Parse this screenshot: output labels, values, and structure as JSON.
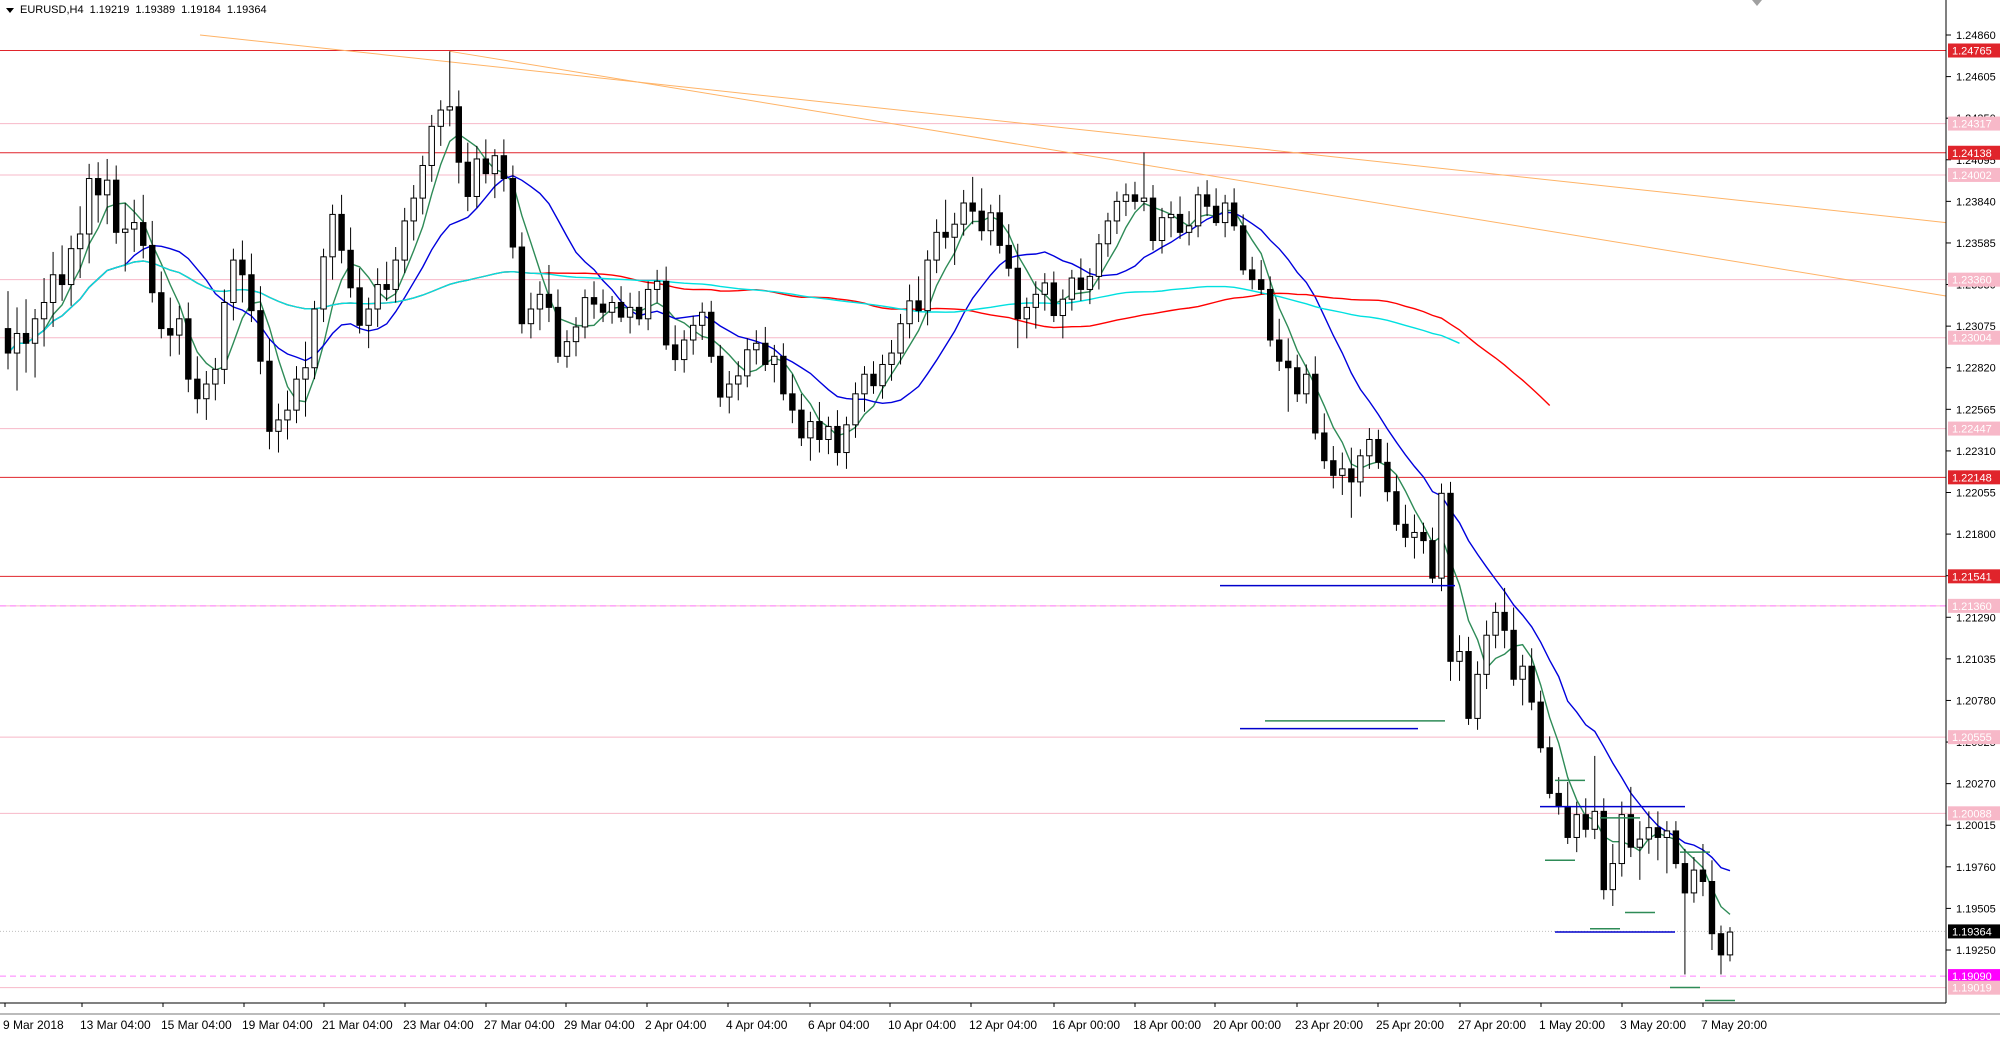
{
  "header": {
    "symbol": "EURUSD,H4",
    "open": "1.19219",
    "high": "1.19389",
    "low": "1.19184",
    "close": "1.19364"
  },
  "chart_data": {
    "type": "candlestick",
    "symbol": "EURUSD",
    "timeframe": "H4",
    "ylim": [
      1.1895,
      1.2498
    ],
    "price_ticks": [
      "1.24860",
      "1.24605",
      "1.24350",
      "1.24095",
      "1.23840",
      "1.23585",
      "1.23330",
      "1.23075",
      "1.22820",
      "1.22565",
      "1.22310",
      "1.22055",
      "1.21800",
      "1.21545",
      "1.21290",
      "1.21035",
      "1.20780",
      "1.20525",
      "1.20270",
      "1.20015",
      "1.19760",
      "1.19505",
      "1.19250"
    ],
    "time_labels": [
      "9 Mar 2018",
      "13 Mar 04:00",
      "15 Mar 04:00",
      "19 Mar 04:00",
      "21 Mar 04:00",
      "23 Mar 04:00",
      "27 Mar 04:00",
      "29 Mar 04:00",
      "2 Apr 04:00",
      "4 Apr 04:00",
      "6 Apr 04:00",
      "10 Apr 04:00",
      "12 Apr 04:00",
      "16 Apr 00:00",
      "18 Apr 00:00",
      "20 Apr 00:00",
      "23 Apr 20:00",
      "25 Apr 20:00",
      "27 Apr 20:00",
      "1 May 20:00",
      "3 May 20:00",
      "7 May 20:00"
    ],
    "candles": [
      [
        1.2306,
        1.2329,
        1.2281,
        1.2291
      ],
      [
        1.2291,
        1.2319,
        1.2268,
        1.2303
      ],
      [
        1.2303,
        1.2324,
        1.2279,
        1.2297
      ],
      [
        1.2297,
        1.2318,
        1.2276,
        1.2312
      ],
      [
        1.2312,
        1.2337,
        1.2295,
        1.2322
      ],
      [
        1.2322,
        1.2353,
        1.2307,
        1.2339
      ],
      [
        1.2339,
        1.2357,
        1.2323,
        1.2333
      ],
      [
        1.2333,
        1.2363,
        1.232,
        1.2355
      ],
      [
        1.2355,
        1.2381,
        1.2337,
        1.2364
      ],
      [
        1.2364,
        1.2407,
        1.2346,
        1.2398
      ],
      [
        1.2398,
        1.2408,
        1.2371,
        1.2388
      ],
      [
        1.2388,
        1.241,
        1.237,
        1.2397
      ],
      [
        1.2397,
        1.2406,
        1.2358,
        1.2365
      ],
      [
        1.2365,
        1.2383,
        1.2341,
        1.2367
      ],
      [
        1.2367,
        1.2385,
        1.2353,
        1.2371
      ],
      [
        1.2371,
        1.2388,
        1.2349,
        1.2357
      ],
      [
        1.2357,
        1.2372,
        1.2322,
        1.2328
      ],
      [
        1.2328,
        1.2341,
        1.23,
        1.2306
      ],
      [
        1.2306,
        1.2325,
        1.2289,
        1.2302
      ],
      [
        1.2302,
        1.232,
        1.229,
        1.2312
      ],
      [
        1.2312,
        1.2322,
        1.2267,
        1.2275
      ],
      [
        1.2275,
        1.2289,
        1.2254,
        1.2263
      ],
      [
        1.2263,
        1.228,
        1.225,
        1.2272
      ],
      [
        1.2272,
        1.2288,
        1.2262,
        1.2281
      ],
      [
        1.2281,
        1.233,
        1.2272,
        1.2322
      ],
      [
        1.2322,
        1.2355,
        1.2311,
        1.2348
      ],
      [
        1.2348,
        1.236,
        1.2322,
        1.2339
      ],
      [
        1.2339,
        1.2352,
        1.231,
        1.2317
      ],
      [
        1.2317,
        1.2332,
        1.2278,
        1.2286
      ],
      [
        1.2286,
        1.23,
        1.2232,
        1.2243
      ],
      [
        1.2243,
        1.226,
        1.223,
        1.225
      ],
      [
        1.225,
        1.2268,
        1.2238,
        1.2256
      ],
      [
        1.2256,
        1.2283,
        1.2248,
        1.2275
      ],
      [
        1.2275,
        1.2298,
        1.2252,
        1.2282
      ],
      [
        1.2282,
        1.2323,
        1.2275,
        1.2318
      ],
      [
        1.2318,
        1.2355,
        1.231,
        1.235
      ],
      [
        1.235,
        1.2382,
        1.2336,
        1.2376
      ],
      [
        1.2376,
        1.2388,
        1.2346,
        1.2354
      ],
      [
        1.2354,
        1.2368,
        1.2325,
        1.2331
      ],
      [
        1.2331,
        1.2343,
        1.2303,
        1.2308
      ],
      [
        1.2308,
        1.2325,
        1.2294,
        1.2318
      ],
      [
        1.2318,
        1.2343,
        1.2307,
        1.2333
      ],
      [
        1.2333,
        1.2347,
        1.2323,
        1.233
      ],
      [
        1.233,
        1.2356,
        1.2322,
        1.2348
      ],
      [
        1.2348,
        1.238,
        1.234,
        1.2372
      ],
      [
        1.2372,
        1.2394,
        1.236,
        1.2386
      ],
      [
        1.2386,
        1.2412,
        1.2376,
        1.2406
      ],
      [
        1.2406,
        1.2437,
        1.2396,
        1.243
      ],
      [
        1.243,
        1.2446,
        1.2418,
        1.244
      ],
      [
        1.244,
        1.2476,
        1.243,
        1.2442
      ],
      [
        1.2442,
        1.2452,
        1.2395,
        1.2408
      ],
      [
        1.2408,
        1.242,
        1.2378,
        1.2387
      ],
      [
        1.2387,
        1.2418,
        1.238,
        1.241
      ],
      [
        1.241,
        1.2422,
        1.2395,
        1.2401
      ],
      [
        1.2401,
        1.2416,
        1.2386,
        1.2412
      ],
      [
        1.2412,
        1.2422,
        1.239,
        1.2398
      ],
      [
        1.2398,
        1.2406,
        1.2349,
        1.2356
      ],
      [
        1.2356,
        1.2365,
        1.2303,
        1.2309
      ],
      [
        1.2309,
        1.2328,
        1.23,
        1.2318
      ],
      [
        1.2318,
        1.2335,
        1.2305,
        1.2327
      ],
      [
        1.2327,
        1.2345,
        1.231,
        1.2319
      ],
      [
        1.2319,
        1.233,
        1.2285,
        1.2289
      ],
      [
        1.2289,
        1.2305,
        1.2282,
        1.2298
      ],
      [
        1.2298,
        1.2313,
        1.2289,
        1.2307
      ],
      [
        1.2307,
        1.233,
        1.23,
        1.2325
      ],
      [
        1.2325,
        1.2335,
        1.2312,
        1.2321
      ],
      [
        1.2321,
        1.233,
        1.231,
        1.2316
      ],
      [
        1.2316,
        1.2326,
        1.2309,
        1.2322
      ],
      [
        1.2322,
        1.2332,
        1.231,
        1.2313
      ],
      [
        1.2313,
        1.2328,
        1.2303,
        1.2319
      ],
      [
        1.2319,
        1.2329,
        1.2308,
        1.2312
      ],
      [
        1.2312,
        1.2335,
        1.2305,
        1.233
      ],
      [
        1.233,
        1.2342,
        1.2322,
        1.2335
      ],
      [
        1.2335,
        1.2344,
        1.2293,
        1.2296
      ],
      [
        1.2296,
        1.2308,
        1.228,
        1.2287
      ],
      [
        1.2287,
        1.2305,
        1.2279,
        1.2299
      ],
      [
        1.2299,
        1.2314,
        1.229,
        1.2308
      ],
      [
        1.2308,
        1.2322,
        1.2299,
        1.2316
      ],
      [
        1.2316,
        1.2323,
        1.2285,
        1.2289
      ],
      [
        1.2289,
        1.2296,
        1.2258,
        1.2264
      ],
      [
        1.2264,
        1.228,
        1.2254,
        1.2272
      ],
      [
        1.2272,
        1.2286,
        1.2262,
        1.2277
      ],
      [
        1.2277,
        1.23,
        1.227,
        1.2293
      ],
      [
        1.2293,
        1.2305,
        1.2284,
        1.2297
      ],
      [
        1.2297,
        1.2307,
        1.228,
        1.2284
      ],
      [
        1.2284,
        1.2296,
        1.2273,
        1.2289
      ],
      [
        1.2289,
        1.2297,
        1.2262,
        1.2266
      ],
      [
        1.2266,
        1.2278,
        1.2248,
        1.2256
      ],
      [
        1.2256,
        1.2266,
        1.2234,
        1.2239
      ],
      [
        1.2239,
        1.2255,
        1.2225,
        1.2249
      ],
      [
        1.2249,
        1.2261,
        1.223,
        1.2238
      ],
      [
        1.2238,
        1.2252,
        1.2229,
        1.2246
      ],
      [
        1.2246,
        1.2256,
        1.2222,
        1.223
      ],
      [
        1.223,
        1.2252,
        1.222,
        1.2247
      ],
      [
        1.2247,
        1.2273,
        1.2239,
        1.2266
      ],
      [
        1.2266,
        1.2283,
        1.2255,
        1.2278
      ],
      [
        1.2278,
        1.2286,
        1.2266,
        1.2271
      ],
      [
        1.2271,
        1.229,
        1.2263,
        1.2284
      ],
      [
        1.2284,
        1.2299,
        1.2274,
        1.2291
      ],
      [
        1.2291,
        1.2315,
        1.2284,
        1.2309
      ],
      [
        1.2309,
        1.2333,
        1.23,
        1.2323
      ],
      [
        1.2323,
        1.2338,
        1.231,
        1.2317
      ],
      [
        1.2317,
        1.2354,
        1.2308,
        1.2348
      ],
      [
        1.2348,
        1.2373,
        1.234,
        1.2365
      ],
      [
        1.2365,
        1.2385,
        1.2355,
        1.2362
      ],
      [
        1.2362,
        1.2377,
        1.2345,
        1.237
      ],
      [
        1.237,
        1.2391,
        1.2363,
        1.2383
      ],
      [
        1.2383,
        1.2399,
        1.237,
        1.2378
      ],
      [
        1.2378,
        1.2392,
        1.236,
        1.2366
      ],
      [
        1.2366,
        1.2382,
        1.2357,
        1.2377
      ],
      [
        1.2377,
        1.2388,
        1.2352,
        1.2357
      ],
      [
        1.2357,
        1.237,
        1.2338,
        1.2343
      ],
      [
        1.2343,
        1.2358,
        1.2294,
        1.2312
      ],
      [
        1.2312,
        1.2325,
        1.23,
        1.2319
      ],
      [
        1.2319,
        1.2335,
        1.2306,
        1.2327
      ],
      [
        1.2327,
        1.234,
        1.2317,
        1.2334
      ],
      [
        1.2334,
        1.2341,
        1.231,
        1.2314
      ],
      [
        1.2314,
        1.233,
        1.23,
        1.2324
      ],
      [
        1.2324,
        1.2342,
        1.2317,
        1.2337
      ],
      [
        1.2337,
        1.2349,
        1.2323,
        1.233
      ],
      [
        1.233,
        1.2343,
        1.2321,
        1.2338
      ],
      [
        1.2338,
        1.2364,
        1.233,
        1.2358
      ],
      [
        1.2358,
        1.2377,
        1.235,
        1.2372
      ],
      [
        1.2372,
        1.239,
        1.2364,
        1.2384
      ],
      [
        1.2384,
        1.2395,
        1.2375,
        1.2388
      ],
      [
        1.2388,
        1.2396,
        1.2379,
        1.2384
      ],
      [
        1.2384,
        1.2414,
        1.2378,
        1.2386
      ],
      [
        1.2386,
        1.2394,
        1.2354,
        1.236
      ],
      [
        1.236,
        1.238,
        1.2352,
        1.2374
      ],
      [
        1.2374,
        1.2384,
        1.2362,
        1.2376
      ],
      [
        1.2376,
        1.2387,
        1.2361,
        1.2365
      ],
      [
        1.2365,
        1.2378,
        1.2357,
        1.2369
      ],
      [
        1.2369,
        1.2393,
        1.2362,
        1.2388
      ],
      [
        1.2388,
        1.2397,
        1.2375,
        1.2381
      ],
      [
        1.2381,
        1.2392,
        1.2369,
        1.2371
      ],
      [
        1.2371,
        1.2388,
        1.2362,
        1.2383
      ],
      [
        1.2383,
        1.2392,
        1.2366,
        1.2369
      ],
      [
        1.2369,
        1.2376,
        1.2339,
        1.2342
      ],
      [
        1.2342,
        1.235,
        1.233,
        1.2336
      ],
      [
        1.2336,
        1.2348,
        1.2327,
        1.233
      ],
      [
        1.233,
        1.2338,
        1.2295,
        1.2299
      ],
      [
        1.2299,
        1.2312,
        1.228,
        1.2286
      ],
      [
        1.2286,
        1.23,
        1.2255,
        1.2282
      ],
      [
        1.2282,
        1.229,
        1.2261,
        1.2266
      ],
      [
        1.2266,
        1.2284,
        1.226,
        1.2278
      ],
      [
        1.2278,
        1.2289,
        1.2238,
        1.2242
      ],
      [
        1.2242,
        1.2254,
        1.222,
        1.2225
      ],
      [
        1.2225,
        1.2234,
        1.2208,
        1.2216
      ],
      [
        1.2216,
        1.223,
        1.2204,
        1.222
      ],
      [
        1.222,
        1.2233,
        1.219,
        1.2212
      ],
      [
        1.2212,
        1.2232,
        1.2203,
        1.2228
      ],
      [
        1.2228,
        1.2245,
        1.222,
        1.2238
      ],
      [
        1.2238,
        1.2244,
        1.222,
        1.2224
      ],
      [
        1.2224,
        1.2236,
        1.22,
        1.2206
      ],
      [
        1.2206,
        1.2216,
        1.2182,
        1.2186
      ],
      [
        1.2186,
        1.2198,
        1.2172,
        1.2178
      ],
      [
        1.2178,
        1.2192,
        1.2165,
        1.2181
      ],
      [
        1.2181,
        1.2187,
        1.2168,
        1.2176
      ],
      [
        1.2176,
        1.2184,
        1.215,
        1.2153
      ],
      [
        1.2153,
        1.2211,
        1.2145,
        1.2205
      ],
      [
        1.2205,
        1.2212,
        1.209,
        1.2102
      ],
      [
        1.2102,
        1.2118,
        1.209,
        1.2108
      ],
      [
        1.2108,
        1.2117,
        1.2063,
        1.2067
      ],
      [
        1.2067,
        1.2102,
        1.206,
        1.2094
      ],
      [
        1.2094,
        1.2127,
        1.2085,
        1.2118
      ],
      [
        1.2118,
        1.2138,
        1.211,
        1.2132
      ],
      [
        1.2132,
        1.2147,
        1.211,
        1.2121
      ],
      [
        1.2121,
        1.2135,
        1.2087,
        1.2091
      ],
      [
        1.2091,
        1.2106,
        1.2075,
        1.2099
      ],
      [
        1.2099,
        1.211,
        1.2072,
        1.2077
      ],
      [
        1.2077,
        1.2084,
        1.2046,
        1.2049
      ],
      [
        1.2049,
        1.2056,
        1.2018,
        1.2021
      ],
      [
        1.2021,
        1.2031,
        1.2008,
        1.2013
      ],
      [
        1.2013,
        1.2028,
        1.199,
        1.1994
      ],
      [
        1.1994,
        1.2016,
        1.1985,
        1.2008
      ],
      [
        1.2008,
        1.2018,
        1.1994,
        1.1999
      ],
      [
        1.1999,
        1.2044,
        1.1993,
        1.201
      ],
      [
        1.201,
        1.2018,
        1.1956,
        1.1962
      ],
      [
        1.1962,
        1.199,
        1.1952,
        1.1978
      ],
      [
        1.1978,
        1.2016,
        1.197,
        1.2008
      ],
      [
        1.2008,
        1.2025,
        1.1982,
        1.1988
      ],
      [
        1.1988,
        1.2004,
        1.1968,
        1.1993
      ],
      [
        1.1993,
        1.201,
        1.1984,
        1.2
      ],
      [
        1.2,
        1.201,
        1.198,
        1.1994
      ],
      [
        1.1994,
        1.2004,
        1.1972,
        1.1998
      ],
      [
        1.1998,
        1.2004,
        1.1975,
        1.1978
      ],
      [
        1.1978,
        1.1987,
        1.191,
        1.196
      ],
      [
        1.196,
        1.1982,
        1.1954,
        1.1974
      ],
      [
        1.1974,
        1.199,
        1.1958,
        1.1967
      ],
      [
        1.1967,
        1.198,
        1.1925,
        1.1935
      ],
      [
        1.1935,
        1.194,
        1.191,
        1.1922
      ],
      [
        1.1922,
        1.1939,
        1.1918,
        1.1936
      ]
    ],
    "moving_averages": [
      {
        "color": "#2e8b57"
      },
      {
        "color": "#0000dd"
      },
      {
        "color": "#ff0000"
      },
      {
        "color": "#00e0e0"
      }
    ],
    "price_levels": [
      {
        "price": "1.24765",
        "kind": "red"
      },
      {
        "price": "1.24317",
        "kind": "pink"
      },
      {
        "price": "1.24138",
        "kind": "red"
      },
      {
        "price": "1.24002",
        "kind": "pink"
      },
      {
        "price": "1.23360",
        "kind": "pink"
      },
      {
        "price": "1.23004",
        "kind": "pink"
      },
      {
        "price": "1.22447",
        "kind": "pink"
      },
      {
        "price": "1.22148",
        "kind": "red"
      },
      {
        "price": "1.21541",
        "kind": "red"
      },
      {
        "price": "1.21360",
        "kind": "pink"
      },
      {
        "price": "1.20555",
        "kind": "pink"
      },
      {
        "price": "1.20088",
        "kind": "pink"
      },
      {
        "price": "1.19364",
        "kind": "current"
      },
      {
        "price": "1.19090",
        "kind": "magenta"
      },
      {
        "price": "1.19019",
        "kind": "pink"
      }
    ],
    "colors": {
      "bull": "#ffffff",
      "bear": "#000000",
      "level_red": "#e0242b",
      "level_pink": "#f7b8c8",
      "dashed_magenta": "#ff7fff",
      "trendline": "#ffb366",
      "range_blue": "#0000cc",
      "range_green": "#2e8b57"
    }
  }
}
